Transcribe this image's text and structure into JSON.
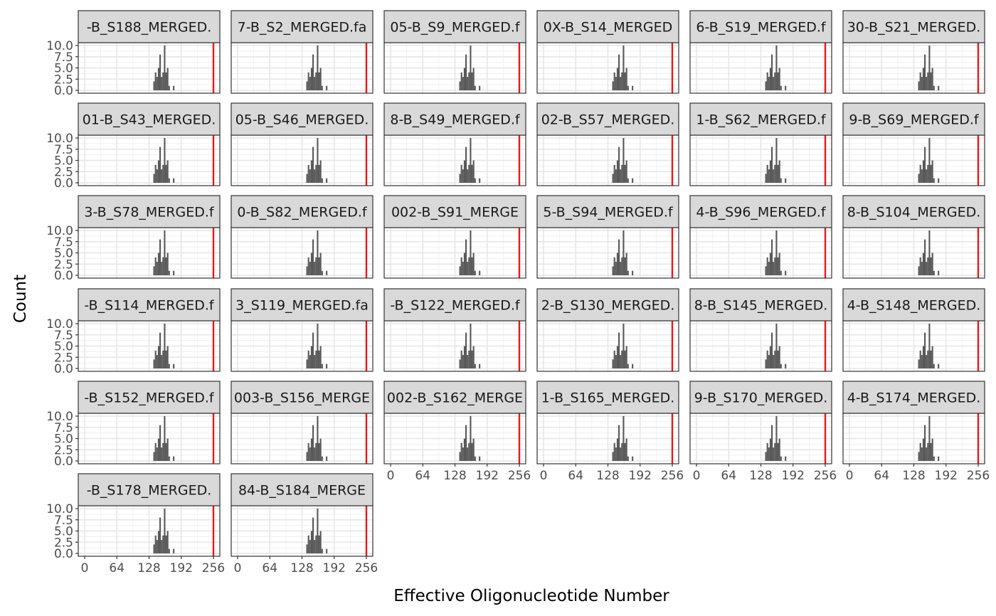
{
  "chart_data": {
    "type": "bar",
    "subtype": "faceted-histogram",
    "xlabel": "Effective Oligonucleotide Number",
    "ylabel": "Count",
    "xlim": [
      0,
      256
    ],
    "ylim": [
      0,
      10
    ],
    "x_ticks": [
      "0",
      "64",
      "128",
      "192",
      "256"
    ],
    "y_ticks": [
      "0.0",
      "2.5",
      "5.0",
      "7.5",
      "10.0"
    ],
    "reference_line": {
      "x": 256,
      "color": "#e31a1c"
    },
    "grid": true,
    "bar_color": "#595959",
    "bins": [
      {
        "x": 138,
        "count": 2
      },
      {
        "x": 141,
        "count": 4
      },
      {
        "x": 144,
        "count": 3
      },
      {
        "x": 147,
        "count": 5
      },
      {
        "x": 150,
        "count": 8
      },
      {
        "x": 153,
        "count": 3
      },
      {
        "x": 156,
        "count": 4
      },
      {
        "x": 159,
        "count": 10
      },
      {
        "x": 162,
        "count": 4
      },
      {
        "x": 165,
        "count": 5
      },
      {
        "x": 168,
        "count": 1
      },
      {
        "x": 177,
        "count": 1
      }
    ],
    "panels": [
      {
        "label": "-B_S188_MERGED."
      },
      {
        "label": "7-B_S2_MERGED.fa"
      },
      {
        "label": "05-B_S9_MERGED.f"
      },
      {
        "label": "0X-B_S14_MERGED"
      },
      {
        "label": "6-B_S19_MERGED.f"
      },
      {
        "label": "30-B_S21_MERGED."
      },
      {
        "label": "01-B_S43_MERGED."
      },
      {
        "label": "05-B_S46_MERGED."
      },
      {
        "label": "8-B_S49_MERGED.f"
      },
      {
        "label": "02-B_S57_MERGED."
      },
      {
        "label": "1-B_S62_MERGED.f"
      },
      {
        "label": "9-B_S69_MERGED.f"
      },
      {
        "label": "3-B_S78_MERGED.f"
      },
      {
        "label": "0-B_S82_MERGED.f"
      },
      {
        "label": "002-B_S91_MERGE"
      },
      {
        "label": "5-B_S94_MERGED.f"
      },
      {
        "label": "4-B_S96_MERGED.f"
      },
      {
        "label": "8-B_S104_MERGED."
      },
      {
        "label": "-B_S114_MERGED.f"
      },
      {
        "label": "3_S119_MERGED.fa"
      },
      {
        "label": "-B_S122_MERGED.f"
      },
      {
        "label": "2-B_S130_MERGED."
      },
      {
        "label": "8-B_S145_MERGED."
      },
      {
        "label": "4-B_S148_MERGED."
      },
      {
        "label": "-B_S152_MERGED.f"
      },
      {
        "label": "003-B_S156_MERGE"
      },
      {
        "label": "002-B_S162_MERGE"
      },
      {
        "label": "1-B_S165_MERGED."
      },
      {
        "label": "9-B_S170_MERGED."
      },
      {
        "label": "4-B_S174_MERGED."
      },
      {
        "label": "-B_S178_MERGED."
      },
      {
        "label": "84-B_S184_MERGE"
      }
    ]
  }
}
